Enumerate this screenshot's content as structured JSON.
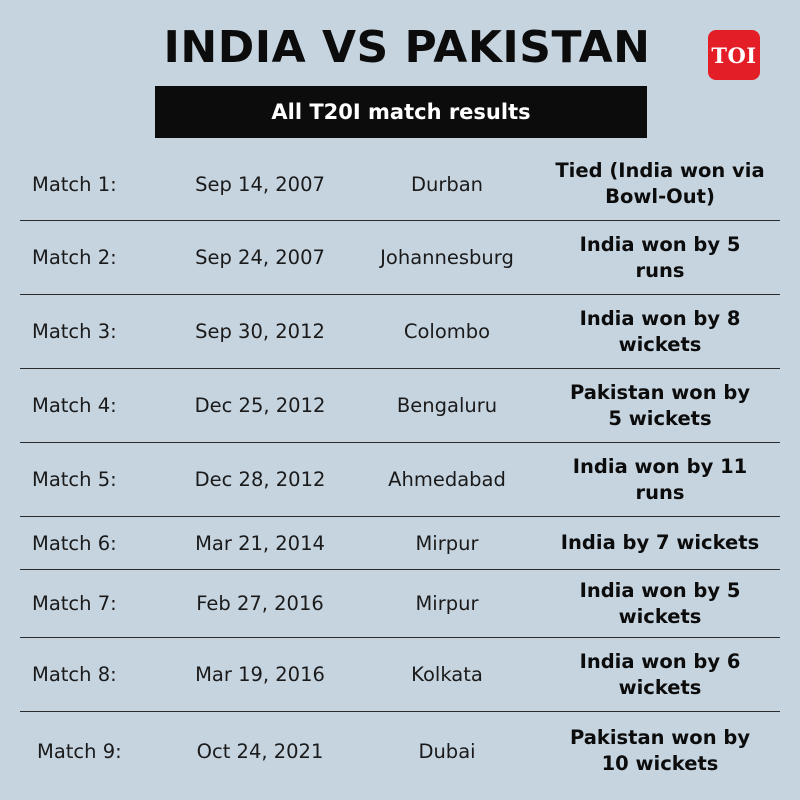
{
  "title": "INDIA VS PAKISTAN",
  "logo_text": "TOI",
  "subtitle": "All T20I match results",
  "colors": {
    "background": "#c6d4e0",
    "bar": "#0c0c0c",
    "logo": "#e41e26"
  },
  "rows": [
    {
      "match": "Match 1:",
      "date": "Sep 14, 2007",
      "venue": "Durban",
      "result": "Tied (India won via Bowl-Out)"
    },
    {
      "match": "Match 2:",
      "date": "Sep 24, 2007",
      "venue": "Johannesburg",
      "result": "India won by 5 runs"
    },
    {
      "match": "Match 3:",
      "date": "Sep 30, 2012",
      "venue": "Colombo",
      "result": "India won by 8 wickets"
    },
    {
      "match": "Match 4:",
      "date": "Dec 25, 2012",
      "venue": "Bengaluru",
      "result": "Pakistan won by 5 wickets"
    },
    {
      "match": "Match 5:",
      "date": "Dec 28, 2012",
      "venue": "Ahmedabad",
      "result": "India won by 11 runs"
    },
    {
      "match": "Match 6:",
      "date": "Mar 21, 2014",
      "venue": "Mirpur",
      "result": "India by 7 wickets"
    },
    {
      "match": "Match 7:",
      "date": "Feb 27, 2016",
      "venue": "Mirpur",
      "result": "India won by 5 wickets"
    },
    {
      "match": "Match 8:",
      "date": "Mar 19, 2016",
      "venue": "Kolkata",
      "result": "India won by 6 wickets"
    },
    {
      "match": "Match 9:",
      "date": "Oct 24, 2021",
      "venue": "Dubai",
      "result": "Pakistan won by 10 wickets"
    }
  ]
}
